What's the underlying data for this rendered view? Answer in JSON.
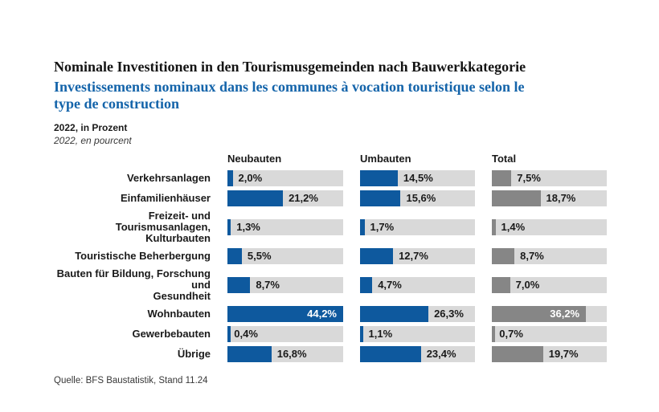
{
  "header": {
    "title_de": "Nominale Investitionen in den Tourismusgemeinden nach Bauwerkkategorie",
    "title_fr": "Investissements nominaux dans les communes à vocation touristique selon le type de construction",
    "period_de": "2022, in Prozent",
    "period_fr": "2022, en pourcent"
  },
  "chart_data": {
    "type": "bar",
    "orientation": "horizontal",
    "unit": "%",
    "xlim": [
      0,
      44.2
    ],
    "grid": false,
    "track_color": "#d9d9d9",
    "categories": [
      "Verkehrsanlagen",
      "Einfamilienhäuser",
      "Freizeit- und Tourismusanlagen, Kulturbauten",
      "Touristische Beherbergung",
      "Bauten für Bildung, Forschung und Gesundheit",
      "Wohnbauten",
      "Gewerbebauten",
      "Übrige"
    ],
    "category_lines": [
      [
        "Verkehrsanlagen"
      ],
      [
        "Einfamilienhäuser"
      ],
      [
        "Freizeit- und Tourismusanlagen,",
        "Kulturbauten"
      ],
      [
        "Touristische Beherbergung"
      ],
      [
        "Bauten für Bildung, Forschung und",
        "Gesundheit"
      ],
      [
        "Wohnbauten"
      ],
      [
        "Gewerbebauten"
      ],
      [
        "Übrige"
      ]
    ],
    "series": [
      {
        "name": "Neubauten",
        "color": "#0e599e",
        "values": [
          2.0,
          21.2,
          1.3,
          5.5,
          8.7,
          44.2,
          0.4,
          16.8
        ],
        "labels": [
          "2,0%",
          "21,2%",
          "1,3%",
          "5,5%",
          "8,7%",
          "44,2%",
          "0,4%",
          "16,8%"
        ]
      },
      {
        "name": "Umbauten",
        "color": "#0e599e",
        "values": [
          14.5,
          15.6,
          1.7,
          12.7,
          4.7,
          26.3,
          1.1,
          23.4
        ],
        "labels": [
          "14,5%",
          "15,6%",
          "1,7%",
          "12,7%",
          "4,7%",
          "26,3%",
          "1,1%",
          "23,4%"
        ]
      },
      {
        "name": "Total",
        "color": "#868686",
        "values": [
          7.5,
          18.7,
          1.4,
          8.7,
          7.0,
          36.2,
          0.7,
          19.7
        ],
        "labels": [
          "7,5%",
          "18,7%",
          "1,4%",
          "8,7%",
          "7,0%",
          "36,2%",
          "0,7%",
          "19,7%"
        ]
      }
    ]
  },
  "footer": {
    "source": "Quelle: BFS Baustatistik, Stand 11.24"
  }
}
